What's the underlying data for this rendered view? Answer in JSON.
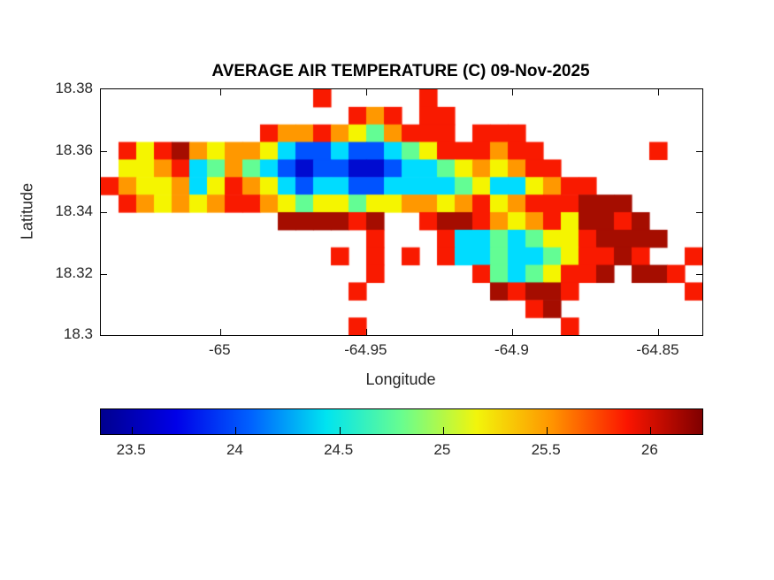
{
  "figure": {
    "background": "#ffffff",
    "axis_color": "#000000",
    "tick_label_color": "#262626"
  },
  "chart_data": {
    "type": "heatmap",
    "title": "AVERAGE AIR TEMPERATURE (C) 09-Nov-2025",
    "xlabel": "Longitude",
    "ylabel": "Latitude",
    "xlim": [
      -65.041,
      -64.835
    ],
    "ylim": [
      18.3,
      18.38
    ],
    "grid_lines": "off",
    "box": "on",
    "x_ticks": {
      "values": [
        -65,
        -64.95,
        -64.9,
        -64.85
      ],
      "labels": [
        "-65",
        "-64.95",
        "-64.9",
        "-64.85"
      ]
    },
    "y_ticks": {
      "values": [
        18.38,
        18.36,
        18.34,
        18.32,
        18.3
      ],
      "labels": [
        "18.38",
        "18.36",
        "18.34",
        "18.32",
        "18.3"
      ]
    },
    "colorbar": {
      "orientation": "horizontal",
      "position": "bottom",
      "colormap": "jet",
      "range": [
        23.35,
        26.25
      ],
      "ticks": {
        "values": [
          23.5,
          24,
          24.5,
          25,
          25.5,
          26
        ],
        "labels": [
          "23.5",
          "24",
          "24.5",
          "25",
          "25.5",
          "26"
        ]
      },
      "gradient_stops": [
        "#00008f",
        "#0000e8",
        "#0062ff",
        "#00e4f0",
        "#68fd8f",
        "#f2f50b",
        "#ff9400",
        "#fb1500",
        "#7f0000"
      ]
    },
    "grid": {
      "description": "Estimated average air temperature (C) over the island on a coarse lon/lat grid; '.' = sea (no data). Row 0 = lat 18.38 (north), last row = lat 18.30 (south); col 0 = lon -65.041 (west), last col = lon -64.835 (east).",
      "rows": 14,
      "cols": 34,
      "lat_range": [
        18.38,
        18.3
      ],
      "lon_range": [
        -65.041,
        -64.835
      ],
      "legend_temp_c": {
        "B": 23.5,
        "b": 23.9,
        "c": 24.4,
        "g": 24.8,
        "y": 25.1,
        "o": 25.5,
        "r": 25.9,
        "d": 26.2,
        ".": null
      },
      "legend_color": {
        "B": "#000bd0",
        "b": "#0053ff",
        "c": "#00dcff",
        "g": "#63fd94",
        "y": "#f5f500",
        "o": "#ff9800",
        "r": "#f91a00",
        "d": "#a50d00"
      },
      "cells": [
        "............r.....r...............",
        "..............ror.rr..............",
        ".........rooroygorrr.rrr..........",
        ".ryrdoyooycbbcbbcgyrrrorr......r..",
        ".yyorcgogcbBbbBBbccgyoyorr........",
        "royyocyroycbccbbccccgyccyorr......",
        ".royoyorroygyygyyooyoryorrrddd....",
        "..........ddddrd..rddroyoryddrd...",
        "...............r...rccgcgyyrdddd..",
        ".............r.r.r.rccgccgyrrdr..r",
        "...............r.....rgcgyrrd.ddr.",
        "..............r.......drddr......r",
        "........................rd........",
        "..............r...........r......."
      ]
    }
  }
}
